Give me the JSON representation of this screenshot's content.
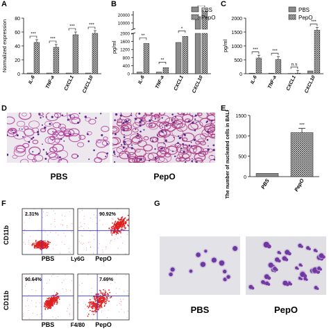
{
  "panels": {
    "A": {
      "label": "A"
    },
    "B": {
      "label": "B"
    },
    "C": {
      "label": "C"
    },
    "D": {
      "label": "D",
      "captions": [
        "PBS",
        "PepO"
      ]
    },
    "E": {
      "label": "E"
    },
    "F": {
      "label": "F"
    },
    "G": {
      "label": "G",
      "captions": [
        "PBS",
        "PepO"
      ]
    }
  },
  "colors": {
    "pbs": "#8a8a8a",
    "pepo": "#d6d6d6",
    "red": "#e01f1f",
    "blue": "#3333cc",
    "tissue": "#b03a9a",
    "cell": "#6a3aa0"
  },
  "chart_data": [
    {
      "id": "A",
      "type": "bar",
      "ylabel": "Normalized expression",
      "yticks": [
        0,
        20,
        40,
        60,
        80
      ],
      "ylim": [
        0,
        80
      ],
      "categories": [
        "IL-6",
        "TNF-a",
        "CXCL1",
        "CXCL10"
      ],
      "series": [
        {
          "name": "PBS",
          "values": [
            1,
            1,
            1,
            1
          ]
        },
        {
          "name": "PepO",
          "values": [
            45,
            38,
            56,
            58
          ]
        }
      ],
      "significance": [
        "***",
        "***",
        "***",
        "***"
      ]
    },
    {
      "id": "B",
      "type": "bar",
      "ylabel": "pg/ml",
      "yticks": [
        "0",
        "400",
        "800",
        "1200",
        "1600",
        "2000",
        "10000",
        "20000"
      ],
      "categories": [
        "IL-6",
        "TNF-a",
        "CXCL1",
        "CXCL10"
      ],
      "series": [
        {
          "name": "PBS",
          "values": [
            80,
            80,
            1550,
            18000
          ]
        },
        {
          "name": "PepO",
          "values": [
            1500,
            300,
            1850,
            25000
          ]
        }
      ],
      "significance": [
        "**",
        "**",
        "*",
        "**"
      ],
      "legend": [
        "PBS",
        "PepO"
      ]
    },
    {
      "id": "C",
      "type": "bar",
      "ylabel": "pg/ml",
      "yticks": [
        0,
        500,
        1000,
        1500,
        2000
      ],
      "ylim": [
        0,
        2000
      ],
      "categories": [
        "IL-6",
        "TNF-a",
        "CXCL1",
        "CXCL10"
      ],
      "series": [
        {
          "name": "PBS",
          "values": [
            20,
            20,
            10,
            100
          ]
        },
        {
          "name": "PepO",
          "values": [
            560,
            510,
            20,
            1560
          ]
        }
      ],
      "significance": [
        "***",
        "***",
        "n.s",
        "***"
      ],
      "legend": [
        "PBS",
        "PepO"
      ]
    },
    {
      "id": "E",
      "type": "bar",
      "ylabel": "The number of nucleated cells in BALF(× 10⁴)",
      "yticks": [
        0,
        500,
        1000,
        1500
      ],
      "ylim": [
        0,
        1500
      ],
      "categories": [
        "PBS",
        "PepO"
      ],
      "values": [
        80,
        1080
      ],
      "significance": [
        "***"
      ]
    },
    {
      "id": "F",
      "type": "scatter",
      "ylabel": "CD11b",
      "plots": [
        {
          "name": "PBS",
          "xlabel": "Ly6G",
          "gate_percent": "2.31%"
        },
        {
          "name": "PepO",
          "xlabel": "",
          "gate_percent": "90.92%"
        },
        {
          "name": "PBS",
          "xlabel": "F4/80",
          "gate_percent": "90.64%"
        },
        {
          "name": "PepO",
          "xlabel": "",
          "gate_percent": "7.69%"
        }
      ],
      "captions": [
        "PBS",
        "Ly6G",
        "PepO",
        "PBS",
        "F4/80",
        "PepO"
      ]
    }
  ]
}
